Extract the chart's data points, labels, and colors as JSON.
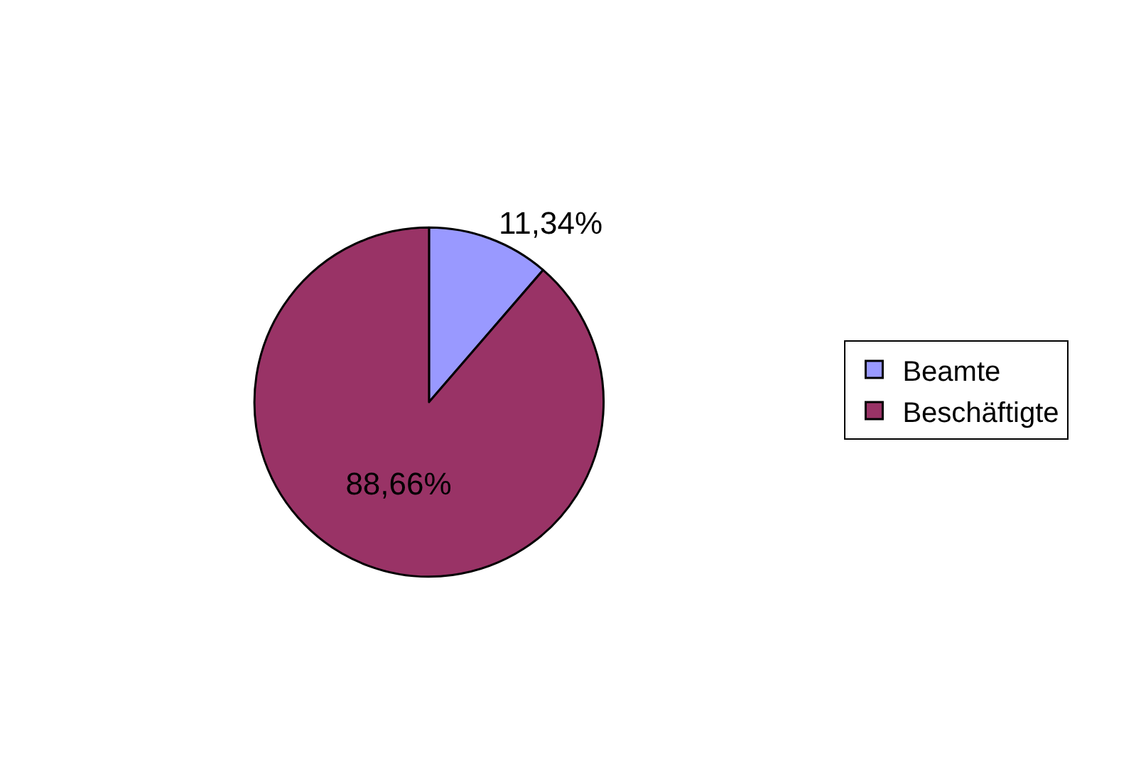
{
  "chart_data": {
    "type": "pie",
    "categories": [
      "Beamte",
      "Beschäftigte"
    ],
    "values": [
      11.34,
      88.66
    ],
    "colors": [
      "#9999ff",
      "#993366"
    ],
    "value_labels": [
      "11,34%",
      "88,66%"
    ],
    "legend": "right"
  }
}
